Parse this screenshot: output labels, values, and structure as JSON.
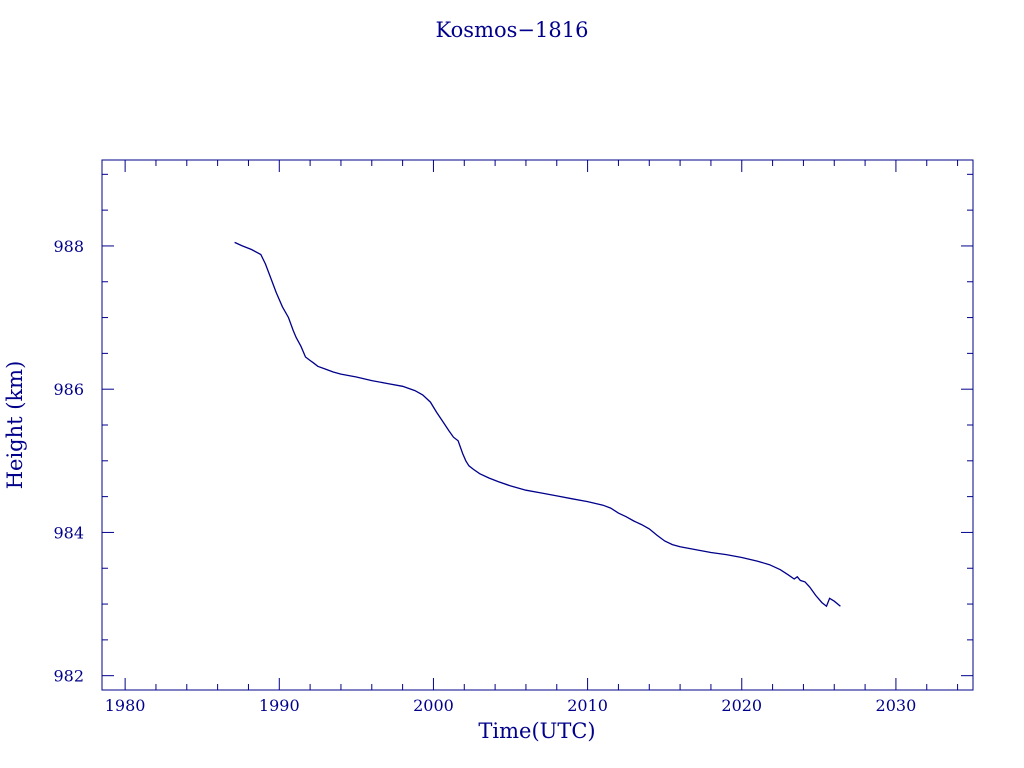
{
  "chart_data": {
    "type": "line",
    "title": "Kosmos−1816",
    "xlabel": "Time(UTC)",
    "ylabel": "Height (km)",
    "xlim": [
      1978.5,
      2035
    ],
    "ylim": [
      981.8,
      989.2
    ],
    "x_ticks": [
      1980,
      1990,
      2000,
      2010,
      2020,
      2030
    ],
    "x_tick_labels": [
      "1980",
      "1990",
      "2000",
      "2010",
      "2020",
      "2030"
    ],
    "y_ticks": [
      982,
      984,
      986,
      988
    ],
    "y_tick_labels": [
      "982",
      "984",
      "986",
      "988"
    ],
    "grid": false,
    "line_color": "#00008b",
    "series": [
      {
        "x": [
          1987.1,
          1987.6,
          1988.2,
          1988.8,
          1989.1,
          1989.4,
          1989.8,
          1990.2,
          1990.6,
          1990.9,
          1991.1,
          1991.4,
          1991.7,
          1992.0,
          1992.2,
          1992.5,
          1993.0,
          1993.5,
          1994.0,
          1995.0,
          1996.0,
          1997.0,
          1998.0,
          1998.8,
          1999.3,
          1999.8,
          2000.2,
          2000.6,
          2001.0,
          2001.3,
          2001.6,
          2001.9,
          2002.1,
          2002.3,
          2002.6,
          2003.0,
          2003.6,
          2004.2,
          2005.0,
          2006.0,
          2007.0,
          2008.0,
          2009.0,
          2010.0,
          2011.0,
          2011.5,
          2012.0,
          2012.5,
          2013.0,
          2013.5,
          2014.0,
          2014.5,
          2015.0,
          2015.5,
          2016.0,
          2017.0,
          2018.0,
          2019.0,
          2020.0,
          2021.0,
          2021.8,
          2022.5,
          2023.0,
          2023.4,
          2023.6,
          2023.8,
          2024.1,
          2024.4,
          2024.8,
          2025.2,
          2025.5,
          2025.7,
          2026.0,
          2026.4
        ],
        "y": [
          988.05,
          988.0,
          987.95,
          987.88,
          987.75,
          987.58,
          987.35,
          987.15,
          987.0,
          986.82,
          986.72,
          986.6,
          986.45,
          986.4,
          986.37,
          986.32,
          986.28,
          986.24,
          986.21,
          986.17,
          986.12,
          986.08,
          986.04,
          985.98,
          985.92,
          985.82,
          985.68,
          985.55,
          985.42,
          985.33,
          985.28,
          985.1,
          985.0,
          984.93,
          984.88,
          984.82,
          984.76,
          984.71,
          984.65,
          984.59,
          984.55,
          984.51,
          984.47,
          984.43,
          984.38,
          984.34,
          984.27,
          984.22,
          984.16,
          984.11,
          984.05,
          983.96,
          983.88,
          983.83,
          983.8,
          983.76,
          983.72,
          983.69,
          983.65,
          983.6,
          983.55,
          983.48,
          983.41,
          983.35,
          983.38,
          983.33,
          983.31,
          983.24,
          983.12,
          983.02,
          982.97,
          983.08,
          983.04,
          982.97
        ]
      }
    ]
  }
}
